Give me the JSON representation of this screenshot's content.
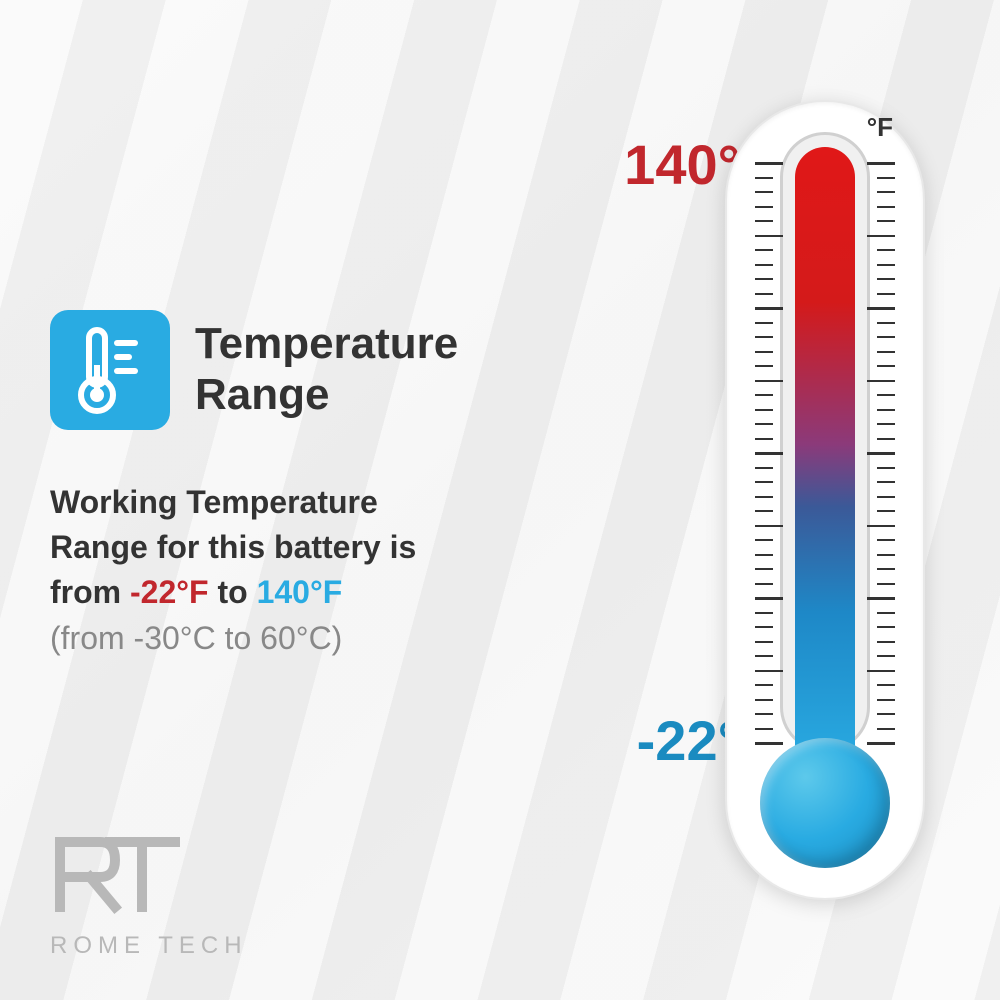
{
  "header": {
    "title": "Temperature Range",
    "icon_bg": "#29abe2"
  },
  "description": {
    "line1": "Working Temperature",
    "line2": "Range for this battery is",
    "line3_prefix": "from ",
    "temp_low": "-22°F",
    "line3_mid": " to ",
    "temp_high": "140°F",
    "celsius": "(from -30°C to 60°C)"
  },
  "thermometer": {
    "unit": "°F",
    "high_label": "140°",
    "low_label": "-22°",
    "colors": {
      "hot": "#e01818",
      "cold": "#29abe2",
      "bulb": "#29abe2"
    },
    "high_color": "#c1272d",
    "low_color": "#1a8bc0",
    "tick_count": 40
  },
  "logo": {
    "mark": "RT",
    "text": "ROME TECH"
  }
}
